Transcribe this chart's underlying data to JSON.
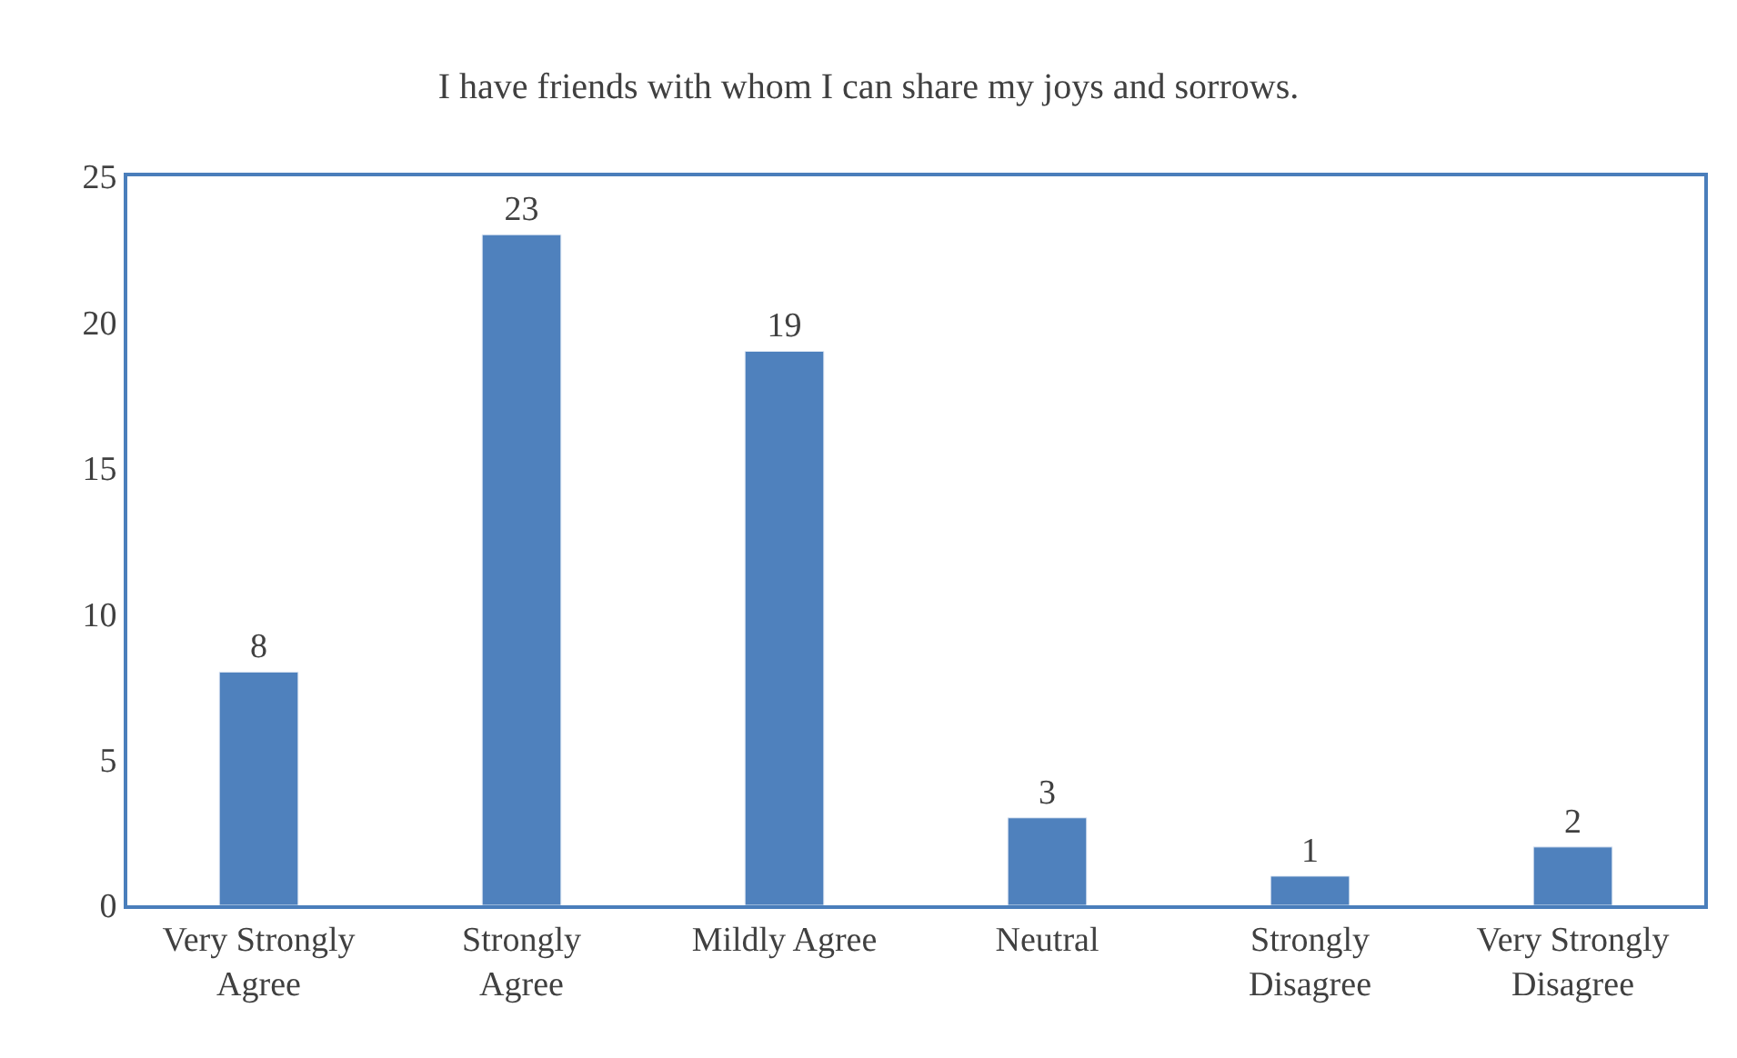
{
  "chart_data": {
    "type": "bar",
    "title": "I have friends with whom I can share my joys and sorrows.",
    "categories": [
      "Very Strongly Agree",
      "Strongly Agree",
      "Mildly Agree",
      "Neutral",
      "Strongly Disagree",
      "Very Strongly Disagree"
    ],
    "values": [
      8,
      23,
      19,
      3,
      1,
      2
    ],
    "color": "#4f81bd",
    "ylim": [
      0,
      25
    ],
    "yticks": [
      0,
      5,
      10,
      15,
      20,
      25
    ],
    "grid": false,
    "data_labels": true,
    "legend": false
  }
}
